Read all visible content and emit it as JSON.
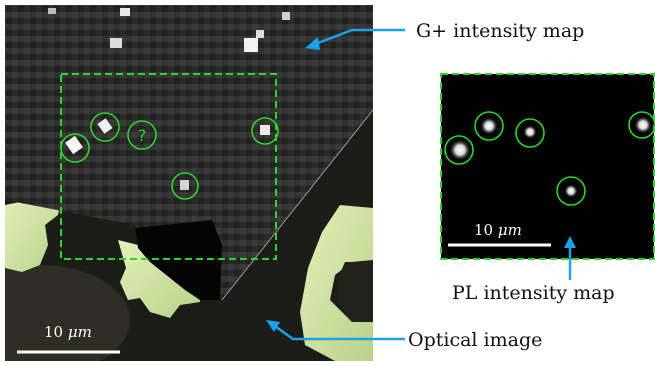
{
  "labels": {
    "g_plus_map": "G+ intensity map",
    "pl_map": "PL intensity map",
    "optical": "Optical image"
  },
  "scale_bars": {
    "left": {
      "value": "10",
      "unit": "μm"
    },
    "right": {
      "value": "10",
      "unit": "μm"
    }
  },
  "markers": {
    "unknown": "?"
  },
  "colors": {
    "arrow": "#1aa3e8",
    "circle": "#2bd62b",
    "dashed_box": "#2bd62b",
    "flake": "#cfe3a0",
    "background_dark": "#1a1a1a"
  }
}
